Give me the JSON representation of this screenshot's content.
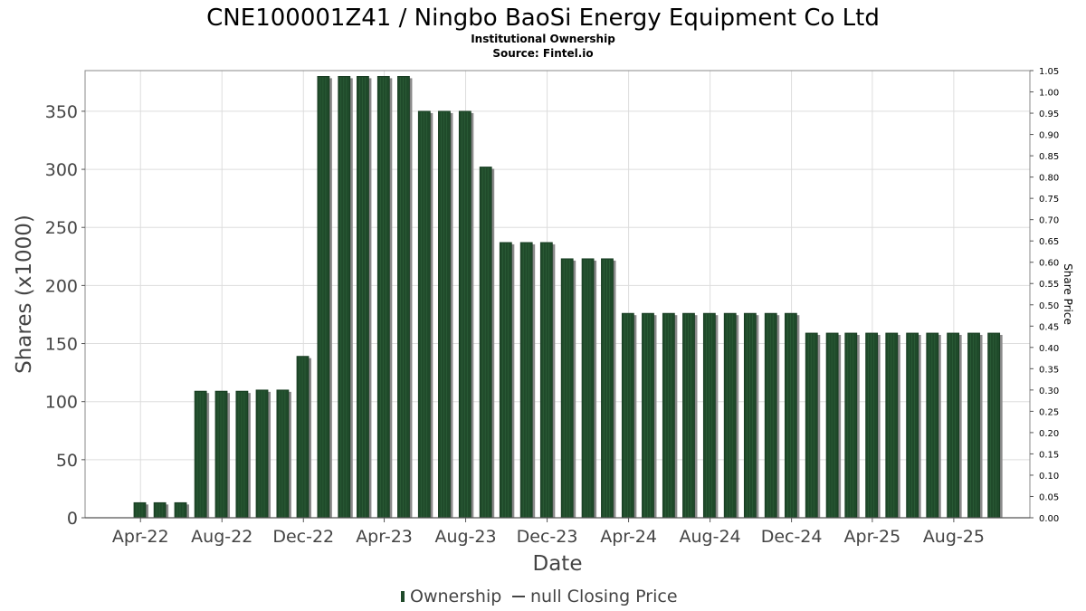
{
  "colors": {
    "bar": "#1f4a2a",
    "bar_stripe": "#2c5e38",
    "bar_shadow": "#8a8a8a",
    "grid": "#dddddd",
    "frame": "#888888"
  },
  "chart_data": {
    "type": "bar",
    "title": "CNE100001Z41 / Ningbo BaoSi Energy Equipment Co Ltd",
    "subtitle_lines": [
      "Institutional Ownership",
      "Source: Fintel.io"
    ],
    "xlabel": "Date",
    "ylabel": "Shares (x1000)",
    "ylabel_right": "Share Price",
    "ylim": [
      0,
      385
    ],
    "y_ticks": [
      0,
      50,
      100,
      150,
      200,
      250,
      300,
      350
    ],
    "y_ticks_labels": [
      "0",
      "50",
      "100",
      "150",
      "200",
      "250",
      "300",
      "350"
    ],
    "y2lim": [
      0,
      1.05
    ],
    "y2_ticks": [
      "0.00",
      "0.05",
      "0.10",
      "0.15",
      "0.20",
      "0.25",
      "0.30",
      "0.35",
      "0.40",
      "0.45",
      "0.50",
      "0.55",
      "0.60",
      "0.65",
      "0.70",
      "0.75",
      "0.80",
      "0.85",
      "0.90",
      "0.95",
      "1.00",
      "1.05"
    ],
    "x_range": [
      "2022-01-08",
      "2025-11-23"
    ],
    "x_ticks": [
      {
        "date": "2022-04-01",
        "label": "Apr-22"
      },
      {
        "date": "2022-08-01",
        "label": "Aug-22"
      },
      {
        "date": "2022-12-01",
        "label": "Dec-22"
      },
      {
        "date": "2023-04-01",
        "label": "Apr-23"
      },
      {
        "date": "2023-08-01",
        "label": "Aug-23"
      },
      {
        "date": "2023-12-01",
        "label": "Dec-23"
      },
      {
        "date": "2024-04-01",
        "label": "Apr-24"
      },
      {
        "date": "2024-08-01",
        "label": "Aug-24"
      },
      {
        "date": "2024-12-01",
        "label": "Dec-24"
      },
      {
        "date": "2025-04-01",
        "label": "Apr-25"
      },
      {
        "date": "2025-08-01",
        "label": "Aug-25"
      }
    ],
    "grid": true,
    "legend_position": "bottom-center",
    "legend": [
      "Ownership",
      "null Closing Price"
    ],
    "series": [
      {
        "name": "Ownership",
        "dates": [
          "2022-03-31",
          "2022-04-30",
          "2022-05-31",
          "2022-06-30",
          "2022-07-31",
          "2022-08-31",
          "2022-09-30",
          "2022-10-31",
          "2022-11-30",
          "2022-12-31",
          "2023-01-31",
          "2023-02-28",
          "2023-03-31",
          "2023-04-30",
          "2023-05-31",
          "2023-06-30",
          "2023-07-31",
          "2023-08-31",
          "2023-09-30",
          "2023-10-31",
          "2023-11-30",
          "2023-12-31",
          "2024-01-31",
          "2024-02-29",
          "2024-03-31",
          "2024-04-30",
          "2024-05-31",
          "2024-06-30",
          "2024-07-31",
          "2024-08-31",
          "2024-09-30",
          "2024-10-31",
          "2024-11-30",
          "2024-12-31",
          "2025-01-31",
          "2025-02-28",
          "2025-03-31",
          "2025-04-30",
          "2025-05-31",
          "2025-06-30",
          "2025-07-31",
          "2025-08-31",
          "2025-09-30"
        ],
        "values": [
          13,
          13,
          13,
          109,
          109,
          109,
          110,
          110,
          139,
          380,
          380,
          380,
          380,
          380,
          350,
          350,
          350,
          302,
          237,
          237,
          237,
          223,
          223,
          223,
          176,
          176,
          176,
          176,
          176,
          176,
          176,
          176,
          176,
          159,
          159,
          159,
          159,
          159,
          159,
          159,
          159,
          159,
          159
        ]
      },
      {
        "name": "null Closing Price",
        "values": []
      }
    ]
  }
}
